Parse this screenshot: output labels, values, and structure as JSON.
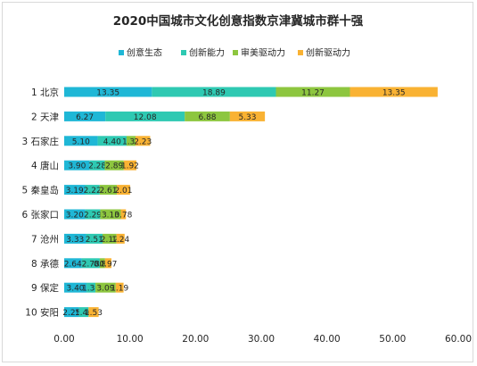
{
  "chart_data": {
    "type": "bar",
    "orientation": "horizontal",
    "stacked": true,
    "title": "2020中国城市文化创意指数京津冀城市群十强",
    "categories": [
      "1 北京",
      "2 天津",
      "3 石家庄",
      "4 唐山",
      "5 秦皇岛",
      "6 张家口",
      "7 沧州",
      "8 承德",
      "9 保定",
      "10 安阳"
    ],
    "series": [
      {
        "name": "创意生态",
        "color": "#1fb7d6",
        "values": [
          13.35,
          6.27,
          5.1,
          3.9,
          3.19,
          3.2,
          3.33,
          2.64,
          3.4,
          2.25
        ]
      },
      {
        "name": "创新能力",
        "color": "#2ec9b2",
        "values": [
          18.89,
          12.08,
          4.4,
          2.28,
          2.22,
          2.29,
          2.51,
          2.78,
          1.36,
          1.46
        ]
      },
      {
        "name": "审美驱动力",
        "color": "#8dc63f",
        "values": [
          11.27,
          6.88,
          1.36,
          2.89,
          2.61,
          3.13,
          2.12,
          0.8,
          3.09,
          0.0
        ]
      },
      {
        "name": "创新驱动力",
        "color": "#f9b233",
        "values": [
          13.35,
          5.33,
          2.23,
          1.92,
          2.01,
          0.78,
          1.24,
          0.97,
          1.19,
          1.53
        ]
      }
    ],
    "data_labels": [
      [
        "13.35",
        "18.89",
        "11.27",
        "13.35"
      ],
      [
        "6.27",
        "12.08",
        "6.88",
        "5.33"
      ],
      [
        "5.10",
        "4.40",
        "1.36",
        "2.23"
      ],
      [
        "3.90",
        "2.28",
        "2.89",
        "1.92"
      ],
      [
        "3.19",
        "2.22",
        "2.61",
        "2.01"
      ],
      [
        "3.20",
        "2.29",
        "3.13",
        "0.78"
      ],
      [
        "3.33",
        "2.51",
        "2.12",
        "1.24"
      ],
      [
        "2.64",
        "2.78",
        "0.80",
        "0.97"
      ],
      [
        "3.40",
        "1.36",
        "3.09",
        "1.19"
      ],
      [
        "2.25",
        "1.46",
        "0.00",
        "1.53"
      ]
    ],
    "xlim": [
      0,
      60
    ],
    "xticks": [
      "0.00",
      "10.00",
      "20.00",
      "30.00",
      "40.00",
      "50.00",
      "60.00"
    ],
    "legend_position": "top",
    "grid": false
  }
}
